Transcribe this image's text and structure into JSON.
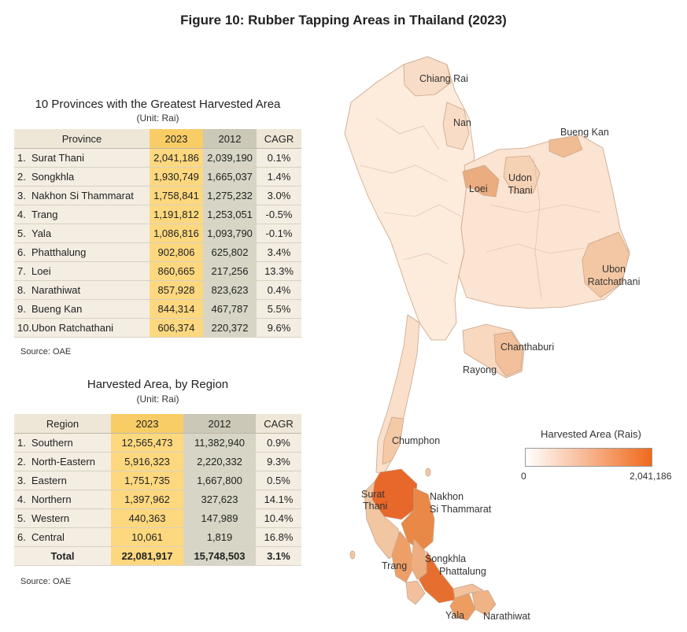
{
  "figure_title": "Figure 10: Rubber Tapping Areas in Thailand (2023)",
  "provinces_table": {
    "title": "10 Provinces with the Greatest Harvested Area",
    "unit": "(Unit: Rai)",
    "headers": [
      "Province",
      "2023",
      "2012",
      "CAGR"
    ],
    "rows": [
      {
        "n": "1.",
        "name": "Surat Thani",
        "v2023": "2,041,186",
        "v2012": "2,039,190",
        "cagr": "0.1%"
      },
      {
        "n": "2.",
        "name": "Songkhla",
        "v2023": "1,930,749",
        "v2012": "1,665,037",
        "cagr": "1.4%"
      },
      {
        "n": "3.",
        "name": "Nakhon Si Thammarat",
        "v2023": "1,758,841",
        "v2012": "1,275,232",
        "cagr": "3.0%"
      },
      {
        "n": "4.",
        "name": "Trang",
        "v2023": "1,191,812",
        "v2012": "1,253,051",
        "cagr": "-0.5%"
      },
      {
        "n": "5.",
        "name": "Yala",
        "v2023": "1,086,816",
        "v2012": "1,093,790",
        "cagr": "-0.1%"
      },
      {
        "n": "6.",
        "name": "Phatthalung",
        "v2023": "902,806",
        "v2012": "625,802",
        "cagr": "3.4%"
      },
      {
        "n": "7.",
        "name": "Loei",
        "v2023": "860,665",
        "v2012": "217,256",
        "cagr": "13.3%"
      },
      {
        "n": "8.",
        "name": "Narathiwat",
        "v2023": "857,928",
        "v2012": "823,623",
        "cagr": "0.4%"
      },
      {
        "n": "9.",
        "name": "Bueng Kan",
        "v2023": "844,314",
        "v2012": "467,787",
        "cagr": "5.5%"
      },
      {
        "n": "10.",
        "name": "Ubon Ratchathani",
        "v2023": "606,374",
        "v2012": "220,372",
        "cagr": "9.6%"
      }
    ],
    "source": "Source: OAE"
  },
  "region_table": {
    "title": "Harvested Area, by Region",
    "unit": "(Unit: Rai)",
    "headers": [
      "Region",
      "2023",
      "2012",
      "CAGR"
    ],
    "rows": [
      {
        "n": "1.",
        "name": "Southern",
        "v2023": "12,565,473",
        "v2012": "11,382,940",
        "cagr": "0.9%"
      },
      {
        "n": "2.",
        "name": "North-Eastern",
        "v2023": "5,916,323",
        "v2012": "2,220,332",
        "cagr": "9.3%"
      },
      {
        "n": "3.",
        "name": "Eastern",
        "v2023": "1,751,735",
        "v2012": "1,667,800",
        "cagr": "0.5%"
      },
      {
        "n": "4.",
        "name": "Northern",
        "v2023": "1,397,962",
        "v2012": "327,623",
        "cagr": "14.1%"
      },
      {
        "n": "5.",
        "name": "Western",
        "v2023": "440,363",
        "v2012": "147,989",
        "cagr": "10.4%"
      },
      {
        "n": "6.",
        "name": "Central",
        "v2023": "10,061",
        "v2012": "1,819",
        "cagr": "16.8%"
      }
    ],
    "total": {
      "name": "Total",
      "v2023": "22,081,917",
      "v2012": "15,748,503",
      "cagr": "3.1%"
    },
    "source": "Source: OAE"
  },
  "map": {
    "legend_title": "Harvested Area (Rais)",
    "legend_min": "0",
    "legend_max": "2,041,186",
    "scale_min": 0,
    "scale_max": 2041186,
    "low_color": "#ffffff",
    "high_color": "#f06a1c",
    "labels": [
      {
        "text": "Chiang Rai",
        "value": null
      },
      {
        "text": "Nan",
        "value": null
      },
      {
        "text": "Bueng Kan",
        "value": 844314
      },
      {
        "text": "Loei",
        "value": 860665
      },
      {
        "text": "Udon",
        "value": null
      },
      {
        "text": "Thani",
        "value": null
      },
      {
        "text": "Ubon",
        "value": 606374
      },
      {
        "text": "Ratchathani",
        "value": 606374
      },
      {
        "text": "Chanthaburi",
        "value": null
      },
      {
        "text": "Rayong",
        "value": null
      },
      {
        "text": "Chumphon",
        "value": null
      },
      {
        "text": "Surat",
        "value": 2041186
      },
      {
        "text": "Thani",
        "value": 2041186
      },
      {
        "text": "Nakhon",
        "value": 1758841
      },
      {
        "text": "Si Thammarat",
        "value": 1758841
      },
      {
        "text": "Trang",
        "value": 1191812
      },
      {
        "text": "Songkhla",
        "value": 1930749
      },
      {
        "text": "Phattalung",
        "value": 902806
      },
      {
        "text": "Yala",
        "value": 1086816
      },
      {
        "text": "Narathiwat",
        "value": 857928
      }
    ]
  },
  "chart_data": {
    "type": "table",
    "title": "Figure 10: Rubber Tapping Areas in Thailand (2023)",
    "tables": [
      {
        "title": "10 Provinces with the Greatest Harvested Area",
        "unit": "Rai",
        "columns": [
          "Province",
          "2023",
          "2012",
          "CAGR"
        ],
        "rows": [
          [
            "Surat Thani",
            2041186,
            2039190,
            0.1
          ],
          [
            "Songkhla",
            1930749,
            1665037,
            1.4
          ],
          [
            "Nakhon Si Thammarat",
            1758841,
            1275232,
            3.0
          ],
          [
            "Trang",
            1191812,
            1253051,
            -0.5
          ],
          [
            "Yala",
            1086816,
            1093790,
            -0.1
          ],
          [
            "Phatthalung",
            902806,
            625802,
            3.4
          ],
          [
            "Loei",
            860665,
            217256,
            13.3
          ],
          [
            "Narathiwat",
            857928,
            823623,
            0.4
          ],
          [
            "Bueng Kan",
            844314,
            467787,
            5.5
          ],
          [
            "Ubon Ratchathani",
            606374,
            220372,
            9.6
          ]
        ]
      },
      {
        "title": "Harvested Area, by Region",
        "unit": "Rai",
        "columns": [
          "Region",
          "2023",
          "2012",
          "CAGR"
        ],
        "rows": [
          [
            "Southern",
            12565473,
            11382940,
            0.9
          ],
          [
            "North-Eastern",
            5916323,
            2220332,
            9.3
          ],
          [
            "Eastern",
            1751735,
            1667800,
            0.5
          ],
          [
            "Northern",
            1397962,
            327623,
            14.1
          ],
          [
            "Western",
            440363,
            147989,
            10.4
          ],
          [
            "Central",
            10061,
            1819,
            16.8
          ],
          [
            "Total",
            22081917,
            15748503,
            3.1
          ]
        ]
      }
    ],
    "map_legend": {
      "title": "Harvested Area (Rais)",
      "min": 0,
      "max": 2041186
    }
  }
}
